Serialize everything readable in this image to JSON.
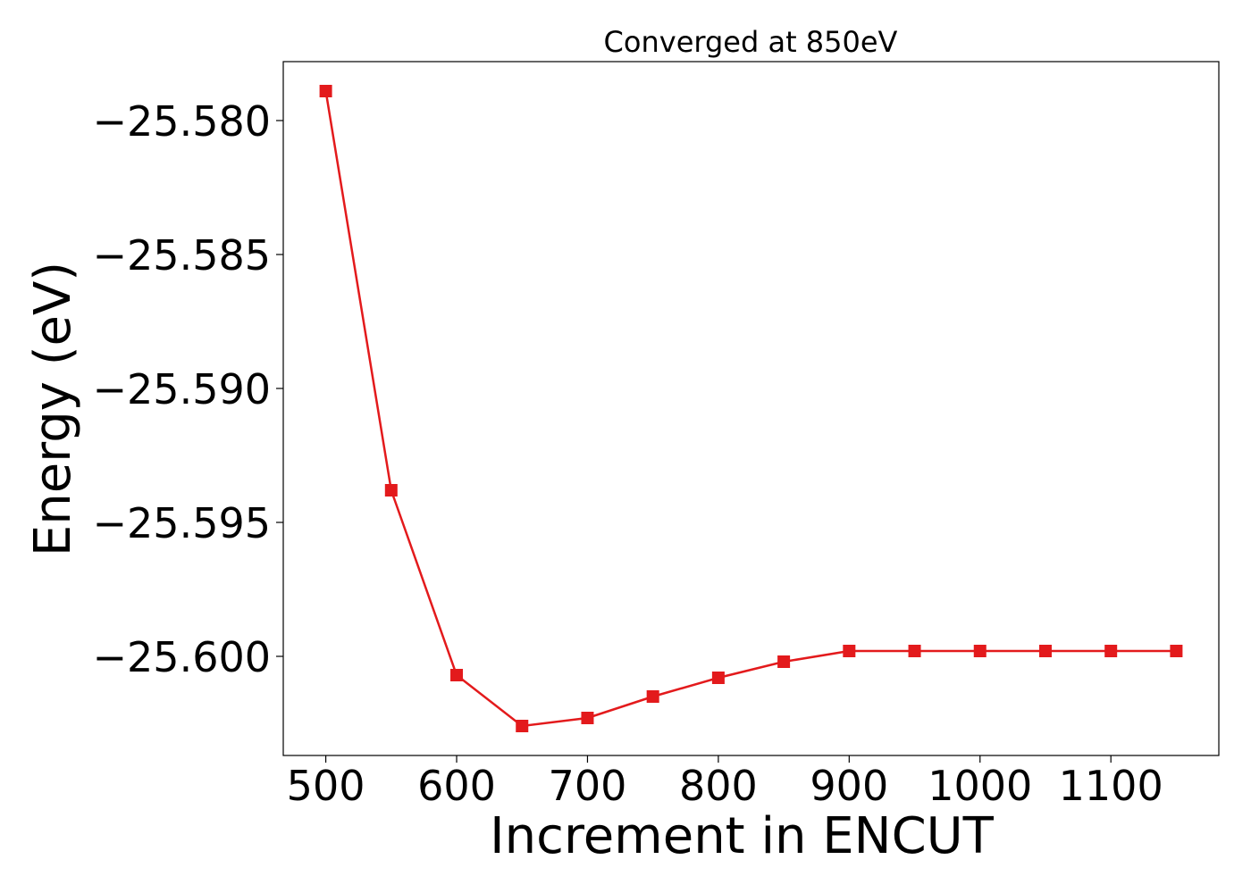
{
  "chart_data": {
    "type": "line",
    "title": "Converged at 850eV",
    "xlabel": "Increment in ENCUT",
    "ylabel": "Energy (eV)",
    "x": [
      500,
      550,
      600,
      650,
      700,
      750,
      800,
      850,
      900,
      950,
      1000,
      1050,
      1100,
      1150
    ],
    "series": [
      {
        "values": [
          -25.5789,
          -25.5938,
          -25.6007,
          -25.6026,
          -25.6023,
          -25.6015,
          -25.6008,
          -25.6002,
          -25.5998,
          -25.5998,
          -25.5998,
          -25.5998,
          -25.5998,
          -25.5998
        ],
        "color": "#e31a1c",
        "marker": "square"
      }
    ],
    "xticks": [
      500,
      600,
      700,
      800,
      900,
      1000,
      1100
    ],
    "xtick_labels": [
      "500",
      "600",
      "700",
      "800",
      "900",
      "1000",
      "1100"
    ],
    "yticks": [
      -25.58,
      -25.585,
      -25.59,
      -25.595,
      -25.6
    ],
    "ytick_labels": [
      "−25.580",
      "−25.585",
      "−25.590",
      "−25.595",
      "−25.600"
    ],
    "xlim": [
      467.5,
      1182.5
    ],
    "ylim": [
      -25.6037,
      -25.5778
    ],
    "grid": false,
    "legend": "none"
  }
}
